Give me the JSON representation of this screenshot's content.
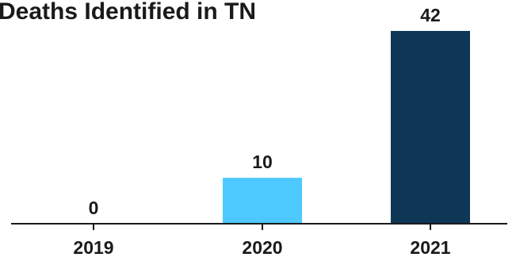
{
  "chart_data": {
    "type": "bar",
    "title": "Deaths Identified in TN",
    "xlabel": "",
    "ylabel": "",
    "categories": [
      "2019",
      "2020",
      "2021"
    ],
    "values": [
      0,
      10,
      42
    ],
    "data_labels": [
      "0",
      "10",
      "42"
    ],
    "colors": [
      "#4dc9ff",
      "#4dc9ff",
      "#0e3655"
    ],
    "ylim": [
      0,
      42
    ],
    "grid": false,
    "legend": "none"
  }
}
